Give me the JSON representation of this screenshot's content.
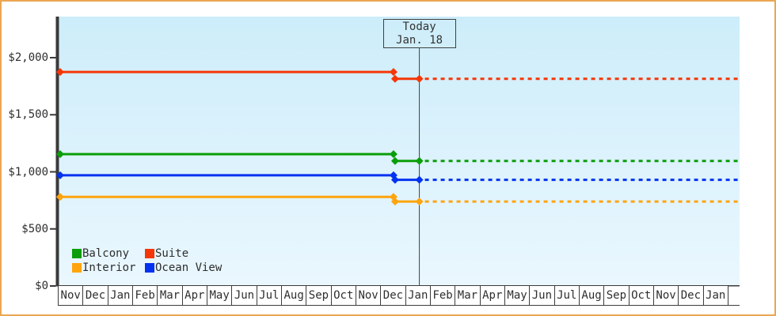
{
  "colors": {
    "frame_border": "#eba652",
    "axis": "#3a3a3a",
    "text": "#2e2e2e",
    "today_line": "#3f3f3f"
  },
  "chart_data": {
    "type": "line",
    "description_visible_text_only": "Price history lines for four cabin categories with a Today marker; dotted segments continue after today.",
    "plot_background_top": "#cdedfa",
    "plot_background_bottom": "#eaf7fe",
    "ylim": [
      0,
      2360
    ],
    "y_ticks": [
      {
        "value": 2000,
        "label": "$2,000"
      },
      {
        "value": 1500,
        "label": "$1,500"
      },
      {
        "value": 1000,
        "label": "$1,000"
      },
      {
        "value": 500,
        "label": "$500"
      },
      {
        "value": 0,
        "label": "$0"
      }
    ],
    "x_months": [
      "Nov",
      "Dec",
      "Jan",
      "Feb",
      "Mar",
      "Apr",
      "May",
      "Jun",
      "Jul",
      "Aug",
      "Sep",
      "Oct",
      "Nov",
      "Dec",
      "Jan",
      "Feb",
      "Mar",
      "Apr",
      "May",
      "Jun",
      "Jul",
      "Aug",
      "Sep",
      "Oct",
      "Nov",
      "Dec",
      "Jan"
    ],
    "today": {
      "title": "Today",
      "date_label": "Jan. 18",
      "month_index": 14,
      "day_fraction": 0.54
    },
    "price_change": {
      "month_index": 13,
      "day_fraction": 0.53
    },
    "projection_style": "dotted",
    "series": [
      {
        "name": "Balcony",
        "color": "#0a9e0a",
        "past_price": 1155,
        "current_price": 1095
      },
      {
        "name": "Suite",
        "color": "#f53608",
        "past_price": 1875,
        "current_price": 1815
      },
      {
        "name": "Interior",
        "color": "#ffa40d",
        "past_price": 780,
        "current_price": 740
      },
      {
        "name": "Ocean View",
        "color": "#0432f0",
        "past_price": 970,
        "current_price": 930
      }
    ],
    "legend": {
      "columns": 2,
      "order": [
        "Balcony",
        "Suite",
        "Interior",
        "Ocean View"
      ]
    }
  }
}
